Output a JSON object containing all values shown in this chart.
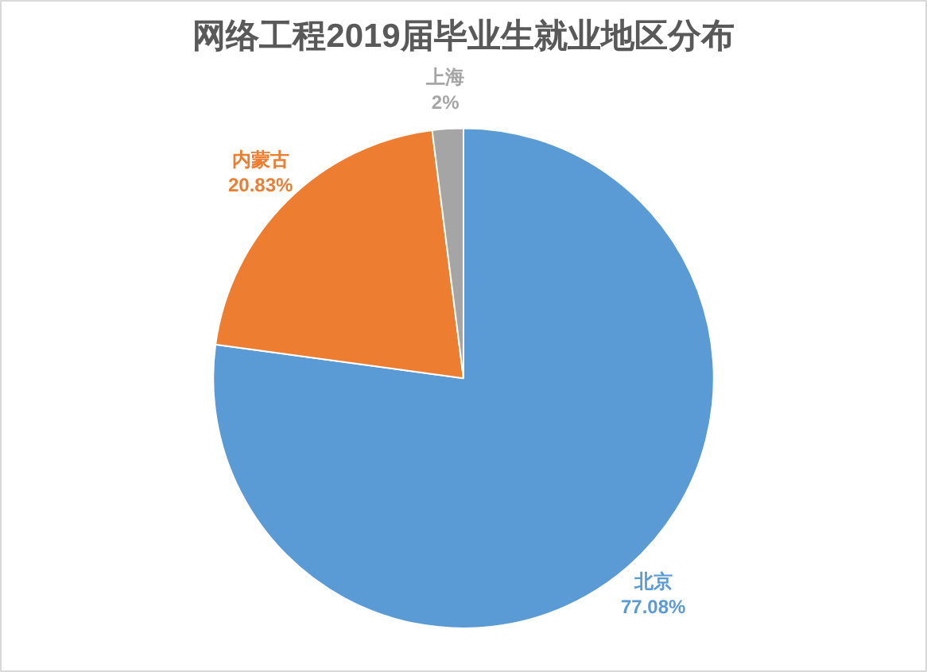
{
  "chart_data": {
    "type": "pie",
    "title": "网络工程2019届毕业生就业地区分布",
    "categories": [
      "北京",
      "内蒙古",
      "上海"
    ],
    "values": [
      77.08,
      20.83,
      2
    ],
    "colors": [
      "#5b9bd5",
      "#ed7d31",
      "#a5a5a5"
    ],
    "value_labels": [
      "77.08%",
      "20.83%",
      "2%"
    ],
    "legend": false
  }
}
